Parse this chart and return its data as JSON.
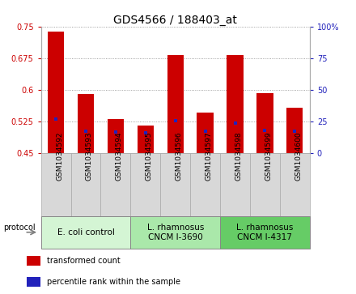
{
  "title": "GDS4566 / 188403_at",
  "samples": [
    "GSM1034592",
    "GSM1034593",
    "GSM1034594",
    "GSM1034595",
    "GSM1034596",
    "GSM1034597",
    "GSM1034598",
    "GSM1034599",
    "GSM1034600"
  ],
  "bar_tops": [
    0.737,
    0.59,
    0.53,
    0.514,
    0.682,
    0.545,
    0.682,
    0.592,
    0.557
  ],
  "bar_bottom": 0.45,
  "percentile_values": [
    0.53,
    0.502,
    0.5,
    0.497,
    0.527,
    0.502,
    0.52,
    0.503,
    0.501
  ],
  "bar_color": "#cc0000",
  "percentile_color": "#2222bb",
  "ylim": [
    0.45,
    0.75
  ],
  "yticks_left": [
    0.45,
    0.525,
    0.6,
    0.675,
    0.75
  ],
  "yticks_right": [
    0,
    25,
    50,
    75,
    100
  ],
  "left_tick_color": "#cc0000",
  "right_tick_color": "#2222bb",
  "grid_color": "#888888",
  "groups": [
    {
      "label": "E. coli control",
      "start": 0,
      "end": 3,
      "color": "#d4f5d4"
    },
    {
      "label": "L. rhamnosus\nCNCM I-3690",
      "start": 3,
      "end": 6,
      "color": "#aae8aa"
    },
    {
      "label": "L. rhamnosus\nCNCM I-4317",
      "start": 6,
      "end": 9,
      "color": "#66cc66"
    }
  ],
  "sample_box_color": "#d8d8d8",
  "sample_box_edge": "#aaaaaa",
  "protocol_label": "protocol",
  "legend_items": [
    {
      "label": "transformed count",
      "color": "#cc0000"
    },
    {
      "label": "percentile rank within the sample",
      "color": "#2222bb"
    }
  ],
  "bar_width": 0.55,
  "title_fontsize": 10,
  "tick_fontsize": 7,
  "sample_fontsize": 6.5,
  "group_fontsize": 7.5,
  "legend_fontsize": 7
}
